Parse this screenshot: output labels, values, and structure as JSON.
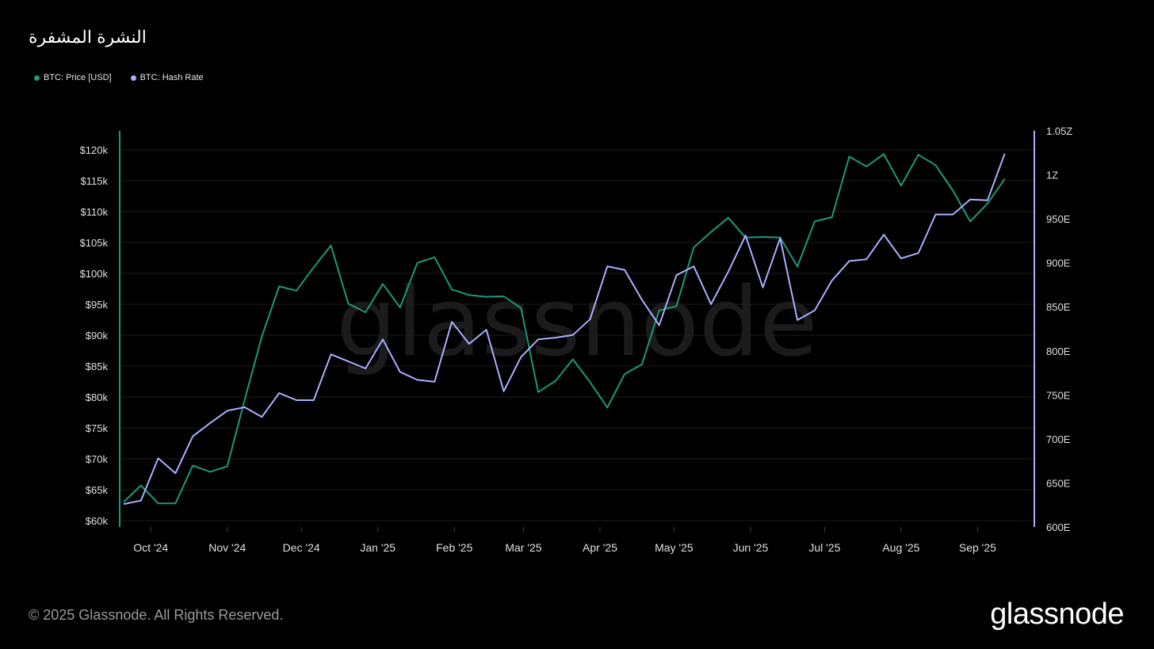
{
  "title": "النشرة المشفرة",
  "legend": [
    {
      "label": "BTC: Price [USD]",
      "color": "#1a9a7a"
    },
    {
      "label": "BTC: Hash Rate",
      "color": "#a9b0ff"
    }
  ],
  "footer": "© 2025 Glassnode. All Rights Reserved.",
  "logo": "glassnode",
  "watermark": "glassnode",
  "chart_data": {
    "type": "line",
    "title": "النشرة المشفرة",
    "x_ticks": [
      "Oct '24",
      "Nov '24",
      "Dec '24",
      "Jan '25",
      "Feb '25",
      "Mar '25",
      "Apr '25",
      "May '25",
      "Jun '25",
      "Jul '25",
      "Aug '25",
      "Sep '25"
    ],
    "y_left_ticks": [
      "$60k",
      "$65k",
      "$70k",
      "$75k",
      "$80k",
      "$85k",
      "$90k",
      "$95k",
      "$100k",
      "$105k",
      "$110k",
      "$115k",
      "$120k"
    ],
    "y_right_ticks": [
      "600E",
      "650E",
      "700E",
      "750E",
      "800E",
      "850E",
      "900E",
      "950E",
      "1Z",
      "1.05Z"
    ],
    "y_left_range": [
      59000,
      122500
    ],
    "y_right_range": [
      600,
      1050
    ],
    "x_range": [
      "2024-09-20",
      "2025-09-15"
    ],
    "series": [
      {
        "name": "BTC: Price [USD]",
        "axis": "left",
        "color": "#1a9a7a",
        "points": [
          [
            "2024-09-20",
            63000
          ],
          [
            "2024-09-27",
            65700
          ],
          [
            "2024-10-04",
            62800
          ],
          [
            "2024-10-11",
            62800
          ],
          [
            "2024-10-18",
            68900
          ],
          [
            "2024-10-25",
            67900
          ],
          [
            "2024-11-01",
            68800
          ],
          [
            "2024-11-08",
            79500
          ],
          [
            "2024-11-15",
            89800
          ],
          [
            "2024-11-22",
            97900
          ],
          [
            "2024-11-29",
            97200
          ],
          [
            "2024-12-06",
            101000
          ],
          [
            "2024-12-13",
            104500
          ],
          [
            "2024-12-20",
            95100
          ],
          [
            "2024-12-27",
            93700
          ],
          [
            "2025-01-03",
            98300
          ],
          [
            "2025-01-10",
            94500
          ],
          [
            "2025-01-17",
            101700
          ],
          [
            "2025-01-24",
            102600
          ],
          [
            "2025-01-31",
            97400
          ],
          [
            "2025-02-07",
            96500
          ],
          [
            "2025-02-14",
            96200
          ],
          [
            "2025-02-21",
            96300
          ],
          [
            "2025-02-28",
            94400
          ],
          [
            "2025-03-07",
            80800
          ],
          [
            "2025-03-14",
            82600
          ],
          [
            "2025-03-21",
            86100
          ],
          [
            "2025-03-28",
            82400
          ],
          [
            "2025-04-04",
            78300
          ],
          [
            "2025-04-11",
            83700
          ],
          [
            "2025-04-18",
            85300
          ],
          [
            "2025-04-25",
            94000
          ],
          [
            "2025-05-02",
            94700
          ],
          [
            "2025-05-09",
            104200
          ],
          [
            "2025-05-16",
            106700
          ],
          [
            "2025-05-23",
            109000
          ],
          [
            "2025-05-30",
            105800
          ],
          [
            "2025-06-06",
            105900
          ],
          [
            "2025-06-13",
            105800
          ],
          [
            "2025-06-20",
            101100
          ],
          [
            "2025-06-27",
            108400
          ],
          [
            "2025-07-04",
            109100
          ],
          [
            "2025-07-11",
            118900
          ],
          [
            "2025-07-18",
            117300
          ],
          [
            "2025-07-25",
            119300
          ],
          [
            "2025-08-01",
            114200
          ],
          [
            "2025-08-08",
            119200
          ],
          [
            "2025-08-15",
            117500
          ],
          [
            "2025-08-22",
            113400
          ],
          [
            "2025-08-29",
            108400
          ],
          [
            "2025-09-05",
            111300
          ],
          [
            "2025-09-12",
            115300
          ]
        ]
      },
      {
        "name": "BTC: Hash Rate",
        "axis": "right",
        "color": "#a9b0ff",
        "points": [
          [
            "2024-09-20",
            626
          ],
          [
            "2024-09-27",
            630
          ],
          [
            "2024-10-04",
            678
          ],
          [
            "2024-10-11",
            661
          ],
          [
            "2024-10-18",
            703
          ],
          [
            "2024-10-25",
            718
          ],
          [
            "2024-11-01",
            732
          ],
          [
            "2024-11-08",
            736
          ],
          [
            "2024-11-15",
            725
          ],
          [
            "2024-11-22",
            752
          ],
          [
            "2024-11-29",
            744
          ],
          [
            "2024-12-06",
            744
          ],
          [
            "2024-12-13",
            796
          ],
          [
            "2024-12-20",
            788
          ],
          [
            "2024-12-27",
            780
          ],
          [
            "2025-01-03",
            813
          ],
          [
            "2025-01-10",
            776
          ],
          [
            "2025-01-17",
            767
          ],
          [
            "2025-01-24",
            765
          ],
          [
            "2025-01-31",
            833
          ],
          [
            "2025-02-07",
            808
          ],
          [
            "2025-02-14",
            824
          ],
          [
            "2025-02-21",
            754
          ],
          [
            "2025-02-28",
            793
          ],
          [
            "2025-03-07",
            813
          ],
          [
            "2025-03-14",
            815
          ],
          [
            "2025-03-21",
            818
          ],
          [
            "2025-03-28",
            836
          ],
          [
            "2025-04-04",
            896
          ],
          [
            "2025-04-11",
            892
          ],
          [
            "2025-04-18",
            858
          ],
          [
            "2025-04-25",
            829
          ],
          [
            "2025-05-02",
            886
          ],
          [
            "2025-05-09",
            896
          ],
          [
            "2025-05-16",
            853
          ],
          [
            "2025-05-23",
            890
          ],
          [
            "2025-05-30",
            931
          ],
          [
            "2025-06-06",
            872
          ],
          [
            "2025-06-13",
            928
          ],
          [
            "2025-06-20",
            835
          ],
          [
            "2025-06-27",
            846
          ],
          [
            "2025-07-04",
            880
          ],
          [
            "2025-07-11",
            902
          ],
          [
            "2025-07-18",
            904
          ],
          [
            "2025-07-25",
            932
          ],
          [
            "2025-08-01",
            905
          ],
          [
            "2025-08-08",
            911
          ],
          [
            "2025-08-15",
            955
          ],
          [
            "2025-08-22",
            955
          ],
          [
            "2025-08-29",
            972
          ],
          [
            "2025-09-05",
            971
          ],
          [
            "2025-09-12",
            1024
          ]
        ]
      }
    ],
    "grid": true
  }
}
